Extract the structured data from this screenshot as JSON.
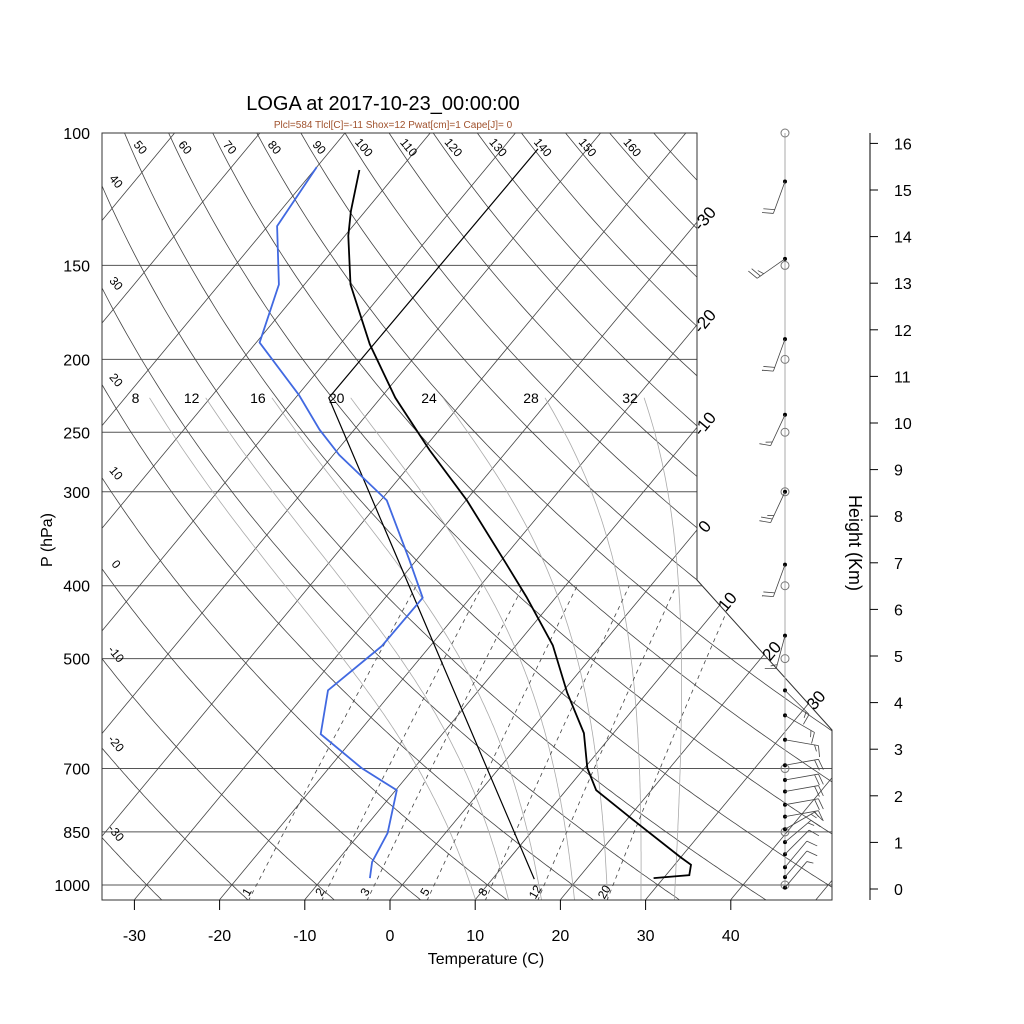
{
  "chart_data": {
    "type": "skewt",
    "title": "LOGA at 2017-10-23_00:00:00",
    "subtitle": "Plcl=584 Tlcl[C]=-11 Shox=12 Pwat[cm]=1 Cape[J]= 0",
    "xlabel": "Temperature (C)",
    "ylabel": "P (hPa)",
    "y2label": "Height (Km)",
    "xticks": [
      -30,
      -20,
      -10,
      0,
      10,
      20,
      30,
      40
    ],
    "xlim": [
      -34,
      46
    ],
    "pressure_ticks": [
      100,
      150,
      200,
      250,
      300,
      400,
      500,
      700,
      850,
      1000
    ],
    "ylim": [
      1048,
      100
    ],
    "height_ticks": [
      0,
      1,
      2,
      3,
      4,
      5,
      6,
      7,
      8,
      9,
      10,
      11,
      12,
      13,
      14,
      15,
      16
    ],
    "isotherm_labels": [
      "-30",
      "-20",
      "-10",
      "0",
      "10",
      "20",
      "30"
    ],
    "dry_adiabat_labels": [
      "-30",
      "-20",
      "-10",
      "0",
      "10",
      "20",
      "30",
      "40",
      "50",
      "60",
      "70",
      "80",
      "90",
      "100",
      "110",
      "120",
      "130",
      "140",
      "150",
      "160"
    ],
    "moist_adiabat_labels": [
      "8",
      "12",
      "16",
      "20",
      "24",
      "28",
      "32"
    ],
    "mixing_ratio_labels": [
      "1",
      "2",
      "3",
      "5",
      "8",
      "12",
      "20"
    ],
    "temperature": {
      "p": [
        979,
        970,
        940,
        918,
        820,
        748,
        699,
        628,
        555,
        480,
        414,
        370,
        308,
        264,
        225,
        191,
        159,
        137,
        127,
        112
      ],
      "t": [
        28.8,
        32.7,
        31.9,
        29.9,
        20.8,
        13.5,
        10.3,
        6.5,
        0.6,
        -5.7,
        -13.5,
        -19.7,
        -29.9,
        -39.2,
        -48.3,
        -56.5,
        -64.6,
        -69.6,
        -71.7,
        -74.7
      ]
    },
    "dewpoint": {
      "p": [
        979,
        932,
        853,
        748,
        699,
        630,
        551,
        481,
        415,
        370,
        308,
        268,
        248,
        223,
        190,
        159,
        133,
        111
      ],
      "t": [
        -4.5,
        -5.8,
        -6.8,
        -9.9,
        -16.2,
        -24.3,
        -27.7,
        -25.7,
        -25.6,
        -30.8,
        -39.3,
        -49.3,
        -54.1,
        -59.9,
        -69.6,
        -73.0,
        -78.9,
        -80.0
      ]
    },
    "parcel": {
      "p": [
        982,
        225,
        105
      ],
      "t": [
        14.9,
        -56.1,
        -55.8
      ]
    },
    "winds": [
      {
        "p": 116,
        "dir": 200,
        "spd": 20
      },
      {
        "p": 147,
        "dir": 235,
        "spd": 25
      },
      {
        "p": 188,
        "dir": 200,
        "spd": 20
      },
      {
        "p": 237,
        "dir": 205,
        "spd": 15
      },
      {
        "p": 300,
        "dir": 205,
        "spd": 25
      },
      {
        "p": 375,
        "dir": 200,
        "spd": 20
      },
      {
        "p": 466,
        "dir": 195,
        "spd": 15
      },
      {
        "p": 551,
        "dir": 135,
        "spd": 15
      },
      {
        "p": 595,
        "dir": 120,
        "spd": 15
      },
      {
        "p": 641,
        "dir": 100,
        "spd": 15
      },
      {
        "p": 693,
        "dir": 80,
        "spd": 20
      },
      {
        "p": 725,
        "dir": 80,
        "spd": 20
      },
      {
        "p": 751,
        "dir": 80,
        "spd": 20
      },
      {
        "p": 782,
        "dir": 80,
        "spd": 20
      },
      {
        "p": 811,
        "dir": 80,
        "spd": 15
      },
      {
        "p": 843,
        "dir": 60,
        "spd": 15
      },
      {
        "p": 877,
        "dir": 50,
        "spd": 15
      },
      {
        "p": 910,
        "dir": 45,
        "spd": 10
      },
      {
        "p": 947,
        "dir": 40,
        "spd": 10
      },
      {
        "p": 976,
        "dir": 40,
        "spd": 10
      },
      {
        "p": 1008,
        "dir": 40,
        "spd": 5
      }
    ],
    "colors": {
      "temperature": "#000000",
      "dewpoint": "#4169e1",
      "parcel": "#000000",
      "subtitle": "#a0522d",
      "grid": "#555555",
      "moist": "#aaaaaa"
    }
  }
}
